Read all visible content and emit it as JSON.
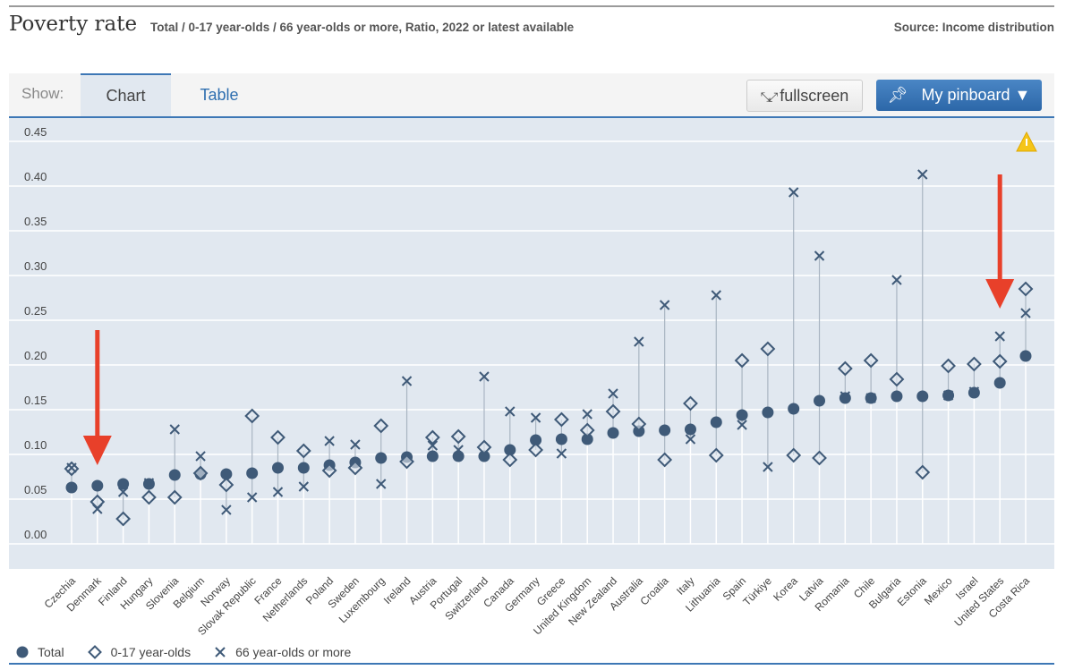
{
  "header": {
    "title": "Poverty rate",
    "subtitle": "Total / 0-17 year-olds / 66 year-olds or more, Ratio, 2022 or latest available",
    "source": "Source: Income distribution"
  },
  "toolbar": {
    "show_label": "Show:",
    "tabs": [
      {
        "label": "Chart",
        "active": true
      },
      {
        "label": "Table",
        "active": false
      }
    ],
    "fullscreen_label": "fullscreen",
    "fullscreen_icon": "expand-arrows-icon",
    "pinboard_label": "My pinboard ▼",
    "pinboard_icon": "pin-icon"
  },
  "colors": {
    "marker": "#3f5a78",
    "accent": "#2c67a8",
    "annotation_arrow": "#e8402a",
    "plot_bg": "#e1e8f0",
    "warning": "#f5c518"
  },
  "chart_data": {
    "type": "dot-range",
    "title": "Poverty rate",
    "ylim": [
      0,
      0.45
    ],
    "yticks": [
      "0.00",
      "0.05",
      "0.10",
      "0.15",
      "0.20",
      "0.25",
      "0.30",
      "0.35",
      "0.40",
      "0.45"
    ],
    "grid": true,
    "legend_position": "bottom-left",
    "categories": [
      "Czechia",
      "Denmark",
      "Finland",
      "Hungary",
      "Slovenia",
      "Belgium",
      "Norway",
      "Slovak Republic",
      "France",
      "Netherlands",
      "Poland",
      "Sweden",
      "Luxembourg",
      "Ireland",
      "Austria",
      "Portugal",
      "Switzerland",
      "Canada",
      "Germany",
      "Greece",
      "United Kingdom",
      "New Zealand",
      "Australia",
      "Croatia",
      "Italy",
      "Lithuania",
      "Spain",
      "Türkiye",
      "Korea",
      "Latvia",
      "Romania",
      "Chile",
      "Bulgaria",
      "Estonia",
      "Mexico",
      "Israel",
      "United States",
      "Costa Rica"
    ],
    "series": [
      {
        "name": "Total",
        "marker": "circle",
        "values": [
          0.063,
          0.065,
          0.067,
          0.067,
          0.077,
          0.078,
          0.078,
          0.079,
          0.085,
          0.085,
          0.088,
          0.091,
          0.096,
          0.097,
          0.098,
          0.098,
          0.098,
          0.105,
          0.116,
          0.117,
          0.117,
          0.124,
          0.126,
          0.127,
          0.128,
          0.136,
          0.144,
          0.147,
          0.151,
          0.16,
          0.163,
          0.163,
          0.165,
          0.165,
          0.166,
          0.169,
          0.18,
          0.21
        ]
      },
      {
        "name": "0-17 year-olds",
        "marker": "diamond",
        "values": [
          0.084,
          0.047,
          0.028,
          0.052,
          0.052,
          0.079,
          0.066,
          0.143,
          0.119,
          0.104,
          0.082,
          0.085,
          0.132,
          0.092,
          0.119,
          0.12,
          0.108,
          0.094,
          0.105,
          0.139,
          0.127,
          0.148,
          0.134,
          0.094,
          0.157,
          0.099,
          0.205,
          0.218,
          0.099,
          0.096,
          0.196,
          0.205,
          0.184,
          0.08,
          0.199,
          0.201,
          0.204,
          0.285
        ]
      },
      {
        "name": "66 year-olds or more",
        "marker": "cross",
        "values": [
          0.085,
          0.039,
          0.058,
          0.068,
          0.128,
          0.098,
          0.038,
          0.052,
          0.058,
          0.064,
          0.115,
          0.111,
          0.067,
          0.182,
          0.11,
          0.105,
          0.187,
          0.148,
          0.141,
          0.101,
          0.145,
          0.168,
          0.226,
          0.267,
          0.117,
          0.278,
          0.133,
          0.086,
          0.393,
          0.322,
          0.165,
          0.163,
          0.295,
          0.413,
          0.166,
          0.17,
          0.232,
          0.258
        ]
      }
    ],
    "annotations": [
      {
        "type": "arrow",
        "target": "Denmark"
      },
      {
        "type": "arrow",
        "target": "United States"
      }
    ]
  },
  "legend": [
    {
      "label": "Total",
      "icon": "circle-marker-icon"
    },
    {
      "label": "0-17 year-olds",
      "icon": "diamond-marker-icon"
    },
    {
      "label": "66 year-olds or more",
      "icon": "cross-marker-icon"
    }
  ]
}
